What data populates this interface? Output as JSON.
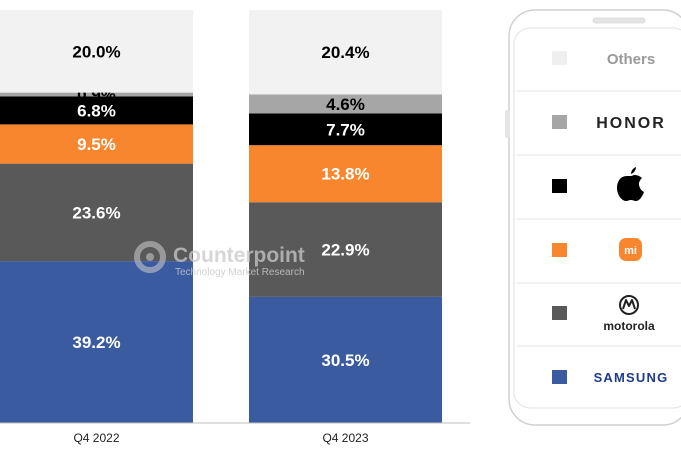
{
  "watermark": {
    "name": "Counterpoint",
    "tagline": "Technology Market Research"
  },
  "chart_data": {
    "type": "bar",
    "stacked": true,
    "normalized": true,
    "categories": [
      "Q4 2022",
      "Q4 2023"
    ],
    "ylim": [
      0,
      100
    ],
    "grid": false,
    "legend_position": "right",
    "series": [
      {
        "name": "SAMSUNG",
        "color": "#3a5ba0",
        "values": [
          39.2,
          30.5
        ],
        "labels": [
          "39.2%",
          "30.5%"
        ],
        "label_color": "#ffffff"
      },
      {
        "name": "motorola",
        "color": "#595959",
        "values": [
          23.6,
          22.9
        ],
        "labels": [
          "23.6%",
          "22.9%"
        ],
        "label_color": "#ffffff"
      },
      {
        "name": "mi",
        "color": "#f8862f",
        "values": [
          9.5,
          13.8
        ],
        "labels": [
          "9.5%",
          "13.8%"
        ],
        "label_color": "#ffffff"
      },
      {
        "name": "apple",
        "color": "#000000",
        "values": [
          6.8,
          7.7
        ],
        "labels": [
          "6.8%",
          "7.7%"
        ],
        "label_color": "#ffffff"
      },
      {
        "name": "HONOR",
        "color": "#a6a6a6",
        "values": [
          0.9,
          4.6
        ],
        "labels": [
          "0.9%",
          "4.6%"
        ],
        "label_color": "#000000"
      },
      {
        "name": "Others",
        "color": "#f2f2f2",
        "values": [
          20.0,
          20.4
        ],
        "labels": [
          "20.0%",
          "20.4%"
        ],
        "label_color": "#000000"
      }
    ]
  },
  "legend": {
    "items": [
      {
        "label": "Others",
        "color": "#efefef",
        "icon": "text"
      },
      {
        "label": "HONOR",
        "color": "#a6a6a6",
        "icon": "text"
      },
      {
        "label": "",
        "color": "#000000",
        "icon": "apple-logo-icon"
      },
      {
        "label": "mi",
        "color": "#f8862f",
        "icon": "xiaomi-logo-icon"
      },
      {
        "label": "motorola",
        "color": "#595959",
        "icon": "motorola-logo-icon"
      },
      {
        "label": "SAMSUNG",
        "color": "#3a5ba0",
        "icon": "text"
      }
    ]
  }
}
